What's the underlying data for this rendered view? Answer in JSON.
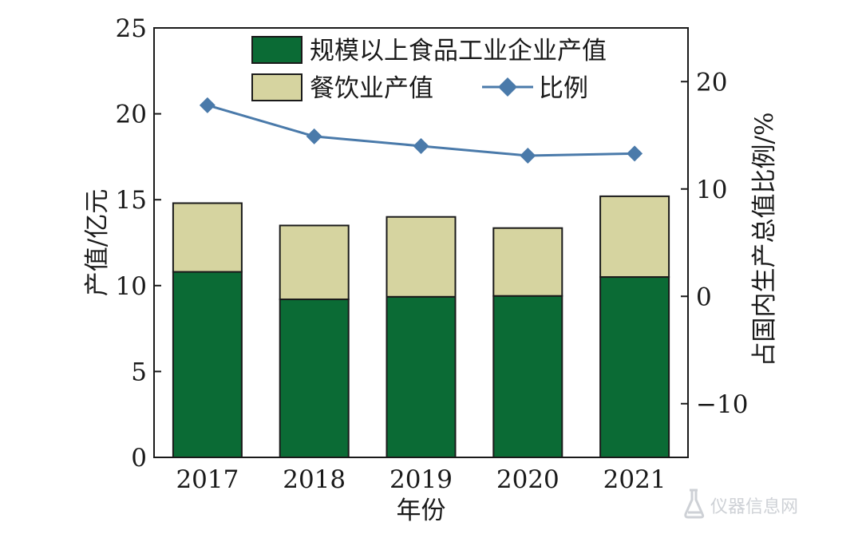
{
  "chart_data": {
    "type": "bar",
    "stacked": true,
    "categories": [
      "2017",
      "2018",
      "2019",
      "2020",
      "2021"
    ],
    "series": [
      {
        "name": "规模以上食品工业企业产值",
        "type": "bar",
        "axis": "left",
        "color": "#0b6b35",
        "values": [
          10.8,
          9.2,
          9.35,
          9.4,
          10.5
        ]
      },
      {
        "name": "餐饮业产值",
        "type": "bar",
        "axis": "left",
        "color": "#d6d4a0",
        "values": [
          4.0,
          4.3,
          4.65,
          3.95,
          4.7
        ]
      },
      {
        "name": "比例",
        "type": "line",
        "axis": "right",
        "color": "#4a7aaa",
        "marker": "diamond",
        "values": [
          17.8,
          14.9,
          14.0,
          13.1,
          13.3
        ]
      }
    ],
    "xlabel": "年份",
    "ylabel": "产值/亿元",
    "y2label": "占国内生产总值比例/%",
    "ylim": [
      0,
      25
    ],
    "y2lim": [
      -15,
      25
    ],
    "yticks": [
      "0",
      "5",
      "10",
      "15",
      "20",
      "25"
    ],
    "y2ticks": [
      "−10",
      "0",
      "10",
      "20"
    ],
    "y2tick_values": [
      -10,
      0,
      10,
      20
    ],
    "grid": false,
    "legend_position": "top"
  },
  "watermark": {
    "text": "仪器信息网",
    "icon": "flask-icon",
    "color": "#c9cdd2"
  }
}
